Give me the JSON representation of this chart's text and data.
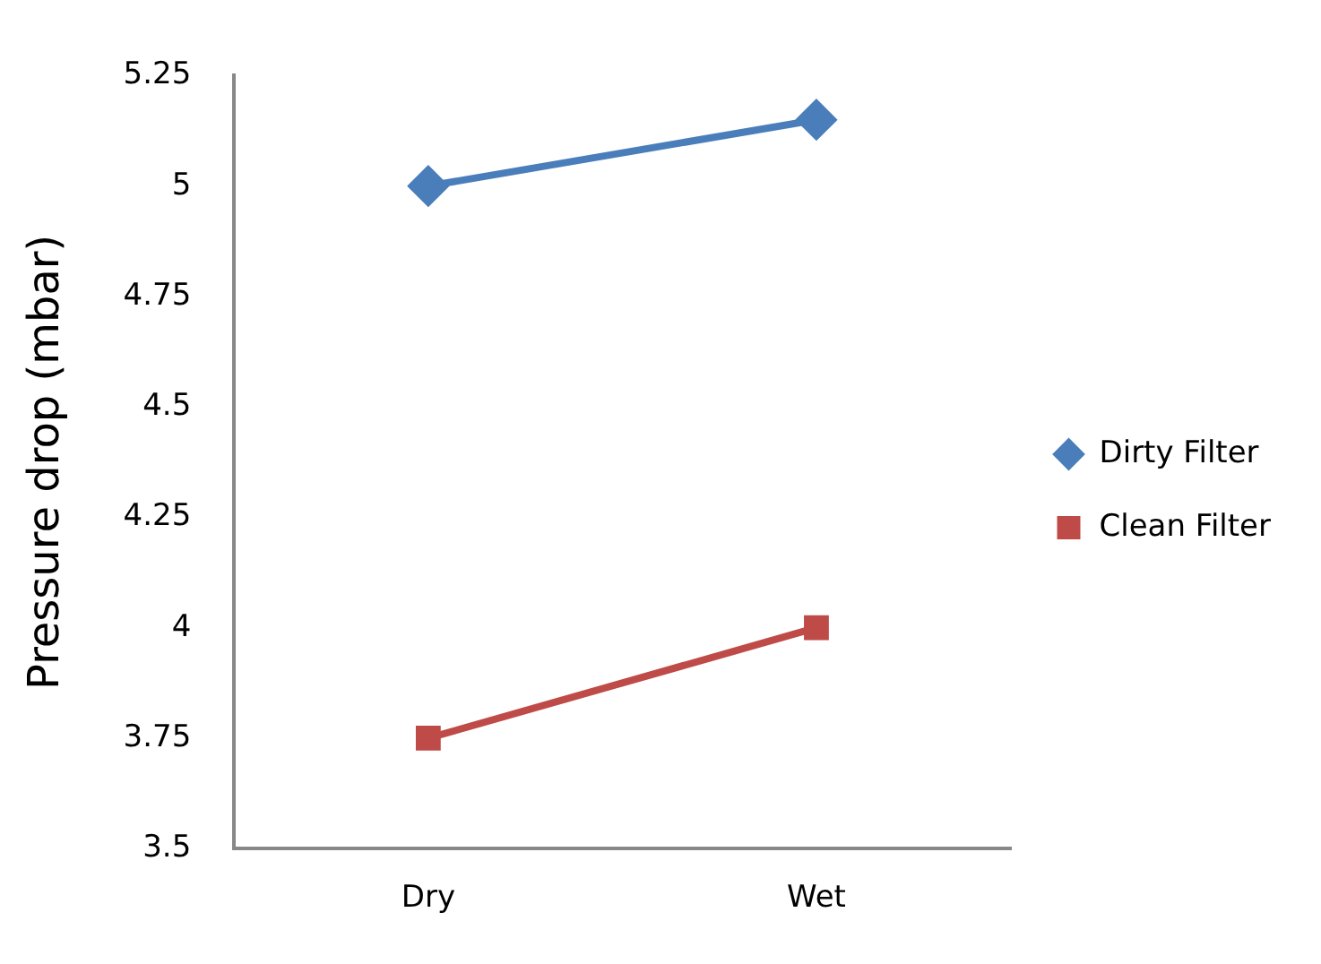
{
  "chart_data": {
    "type": "line",
    "ylabel": "Pressure drop (mbar)",
    "categories": [
      "Dry",
      "Wet"
    ],
    "series": [
      {
        "name": "Dirty Filter",
        "color": "#4a7ebb",
        "values": [
          5,
          5.15
        ],
        "marker": "diamond"
      },
      {
        "name": "Clean Filter",
        "color": "#be4b48",
        "values": [
          3.75,
          4
        ],
        "marker": "square"
      }
    ],
    "ylim": [
      3.5,
      5.25
    ],
    "yticks": [
      3.5,
      3.75,
      4,
      4.25,
      4.5,
      4.75,
      5,
      5.25
    ],
    "grid": false,
    "legend": "right"
  }
}
